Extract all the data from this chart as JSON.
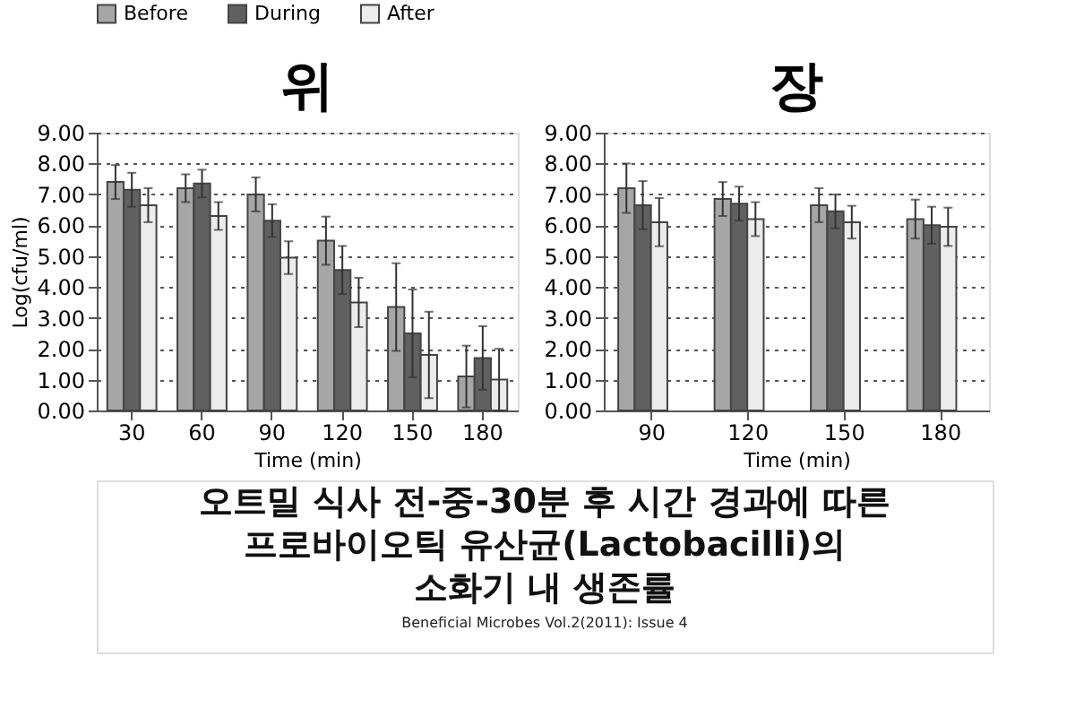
{
  "chart_data": [
    {
      "type": "bar",
      "title": "위",
      "xlabel": "Time (min)",
      "ylabel": "Log(cfu/ml)",
      "categories": [
        "30",
        "60",
        "90",
        "120",
        "150",
        "180"
      ],
      "series": [
        {
          "name": "Before",
          "color": "#a6a6a6",
          "values": [
            7.4,
            7.2,
            7.0,
            5.5,
            3.35,
            1.1
          ],
          "errors": [
            0.55,
            0.45,
            0.55,
            0.78,
            1.42,
            1.0
          ]
        },
        {
          "name": "During",
          "color": "#606060",
          "values": [
            7.15,
            7.35,
            6.15,
            4.55,
            2.5,
            1.7
          ],
          "errors": [
            0.55,
            0.45,
            0.53,
            0.78,
            1.42,
            1.03
          ]
        },
        {
          "name": "After",
          "color": "#ececec",
          "values": [
            6.65,
            6.3,
            4.95,
            3.5,
            1.8,
            1.0
          ],
          "errors": [
            0.55,
            0.45,
            0.53,
            0.8,
            1.4,
            1.0
          ]
        }
      ],
      "ylim": [
        0,
        9
      ],
      "yticks": [
        {
          "value": 0,
          "label": "0.00"
        },
        {
          "value": 1,
          "label": "1.00"
        },
        {
          "value": 2,
          "label": "2.00"
        },
        {
          "value": 3,
          "label": "3.00"
        },
        {
          "value": 4,
          "label": "4.00"
        },
        {
          "value": 5,
          "label": "5.00"
        },
        {
          "value": 6,
          "label": "6.00"
        },
        {
          "value": 7,
          "label": "7.00"
        },
        {
          "value": 8,
          "label": "8.00"
        },
        {
          "value": 9,
          "label": "9.00"
        }
      ],
      "grid": "y",
      "legend": "top"
    },
    {
      "type": "bar",
      "title": "장",
      "xlabel": "Time (min)",
      "categories": [
        "90",
        "120",
        "150",
        "180"
      ],
      "series": [
        {
          "name": "Before",
          "color": "#a6a6a6",
          "values": [
            7.2,
            6.85,
            6.65,
            6.2
          ],
          "errors": [
            0.8,
            0.55,
            0.55,
            0.63
          ]
        },
        {
          "name": "During",
          "color": "#606060",
          "values": [
            6.65,
            6.7,
            6.45,
            6.0
          ],
          "errors": [
            0.78,
            0.55,
            0.55,
            0.6
          ]
        },
        {
          "name": "After",
          "color": "#ececec",
          "values": [
            6.1,
            6.2,
            6.1,
            5.95
          ],
          "errors": [
            0.78,
            0.55,
            0.53,
            0.62
          ]
        }
      ],
      "ylim": [
        0,
        9
      ],
      "yticks": [
        {
          "value": 0,
          "label": "0.00"
        },
        {
          "value": 1,
          "label": "1.00"
        },
        {
          "value": 2,
          "label": "2.00"
        },
        {
          "value": 3,
          "label": "3.00"
        },
        {
          "value": 4,
          "label": "4.00"
        },
        {
          "value": 5,
          "label": "5.00"
        },
        {
          "value": 6,
          "label": "6.00"
        },
        {
          "value": 7,
          "label": "7.00"
        },
        {
          "value": 8,
          "label": "8.00"
        },
        {
          "value": 9,
          "label": "9.00"
        }
      ],
      "grid": "y",
      "legend": "top"
    },
    {
      "type": "other",
      "title": "오트밀 식사 전-중-30분 후 시간 경과에 따른\n프로바이오틱 유산균(Lactobacilli)의\n소화기 내 생존률",
      "annotations": [
        "Beneficial Microbes Vol.2(2011): Issue 4"
      ]
    }
  ]
}
